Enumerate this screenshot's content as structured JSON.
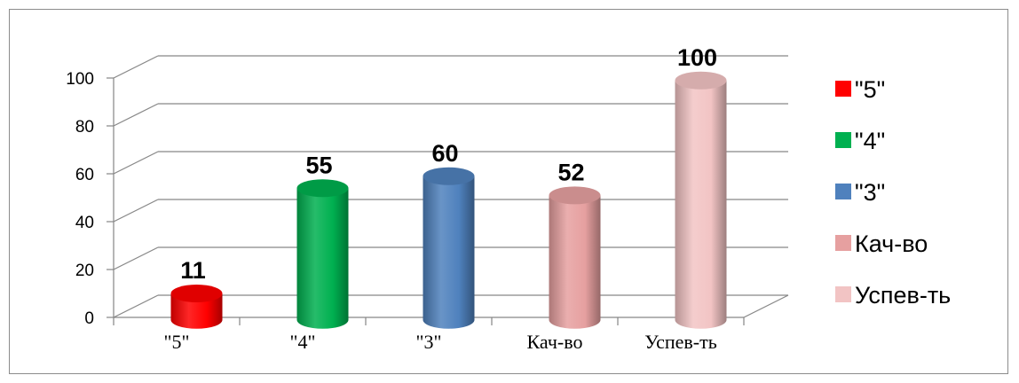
{
  "chart_data": {
    "type": "bar",
    "categories": [
      "\"5\"",
      "\"4\"",
      "\"3\"",
      "Кач-во",
      "Успев-ть"
    ],
    "values": [
      11,
      55,
      60,
      52,
      100
    ],
    "colors": [
      "#ff0000",
      "#00b050",
      "#4f81bd",
      "#e6a0a0",
      "#f2c4c4"
    ],
    "ylim": [
      0,
      100
    ],
    "yticks": [
      "0",
      "20",
      "40",
      "60",
      "80",
      "100"
    ],
    "data_labels": [
      "11",
      "55",
      "60",
      "52",
      "100"
    ],
    "grid": true,
    "legend": {
      "placement": "right",
      "entries": [
        "\"5\"",
        "\"4\"",
        "\"3\"",
        "Кач-во",
        "Успев-ть"
      ]
    }
  }
}
